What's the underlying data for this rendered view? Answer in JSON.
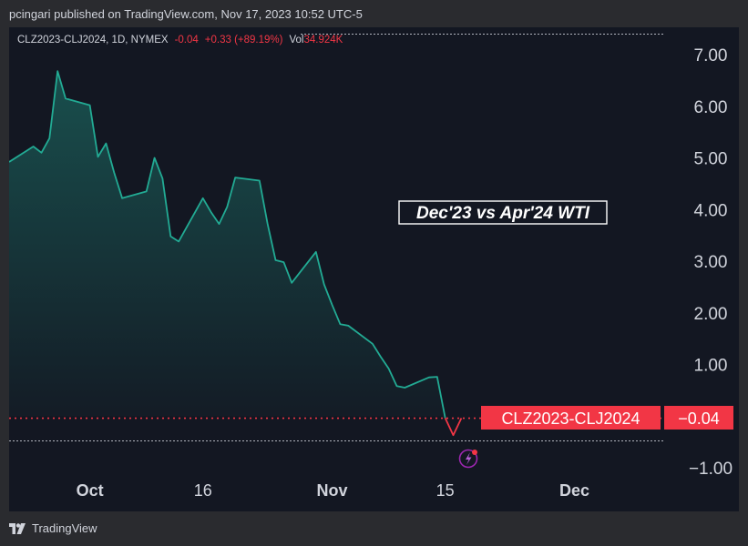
{
  "attribution": "pcingari published on TradingView.com, Nov 17, 2023 10:52 UTC-5",
  "header": {
    "symbol": "CLZ2023-CLJ2024, 1D, NYMEX",
    "last": "-0.04",
    "change": "+0.33 (+89.19%)",
    "vol_label": "Vol",
    "vol_value": "34.924K"
  },
  "footer": {
    "brand": "TradingView"
  },
  "colors": {
    "line": "#22ab94",
    "negative": "#f23645",
    "text": "#d1d4dc",
    "background": "#131722",
    "page": "#2a2b2f"
  },
  "chart_data": {
    "type": "area",
    "title": "Dec'23 vs Apr'24 WTI",
    "series": [
      {
        "name": "CLZ2023-CLJ2024",
        "x": [
          "2023-09-22",
          "2023-09-25",
          "2023-09-26",
          "2023-09-27",
          "2023-09-28",
          "2023-09-29",
          "2023-10-02",
          "2023-10-03",
          "2023-10-04",
          "2023-10-05",
          "2023-10-06",
          "2023-10-09",
          "2023-10-10",
          "2023-10-11",
          "2023-10-12",
          "2023-10-13",
          "2023-10-16",
          "2023-10-17",
          "2023-10-18",
          "2023-10-19",
          "2023-10-20",
          "2023-10-23",
          "2023-10-24",
          "2023-10-25",
          "2023-10-26",
          "2023-10-27",
          "2023-10-30",
          "2023-10-31",
          "2023-11-01",
          "2023-11-02",
          "2023-11-03",
          "2023-11-06",
          "2023-11-07",
          "2023-11-08",
          "2023-11-09",
          "2023-11-10",
          "2023-11-13",
          "2023-11-14",
          "2023-11-15",
          "2023-11-16",
          "2023-11-17"
        ],
        "y": [
          4.92,
          5.22,
          5.1,
          5.38,
          6.68,
          6.15,
          6.02,
          5.02,
          5.28,
          4.72,
          4.22,
          4.35,
          5.0,
          4.6,
          3.48,
          3.38,
          4.22,
          3.95,
          3.72,
          4.05,
          4.62,
          4.56,
          3.72,
          3.02,
          2.98,
          2.58,
          3.18,
          2.55,
          2.15,
          1.78,
          1.75,
          1.4,
          1.15,
          0.92,
          0.58,
          0.55,
          0.75,
          0.76,
          -0.04,
          -0.37,
          -0.04
        ]
      }
    ],
    "last_label": "CLZ2023-CLJ2024",
    "last_value": "−0.04",
    "x_ticks": [
      {
        "date": "2023-10-02",
        "label": "Oct"
      },
      {
        "date": "2023-10-16",
        "label": "16"
      },
      {
        "date": "2023-11-01",
        "label": "Nov"
      },
      {
        "date": "2023-11-15",
        "label": "15"
      },
      {
        "date": "2023-12-01",
        "label": "Dec"
      }
    ],
    "y_ticks": [
      7.0,
      6.0,
      5.0,
      4.0,
      3.0,
      2.0,
      1.0,
      -1.0
    ],
    "y_tick_labels": [
      "7.00",
      "6.00",
      "5.00",
      "4.00",
      "3.00",
      "2.00",
      "1.00",
      "−1.00"
    ],
    "ylim": [
      -1.0,
      7.0
    ],
    "xlim": [
      "2023-09-22",
      "2023-12-12"
    ],
    "grid": false,
    "xlabel": "",
    "ylabel": ""
  }
}
